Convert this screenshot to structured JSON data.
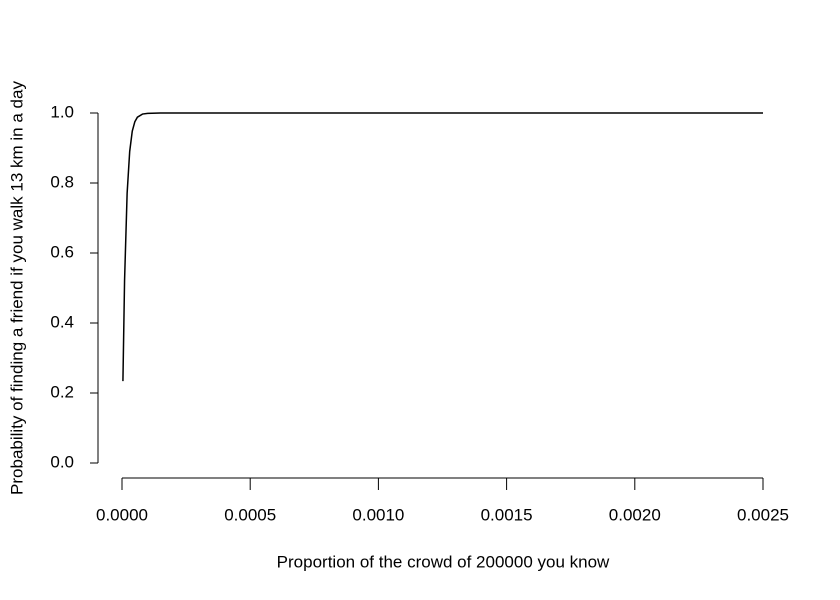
{
  "chart_data": {
    "type": "line",
    "x_label": "Proportion of the crowd of 200000 you know",
    "y_label": "Probability of finding a friend if you walk 13 km in a day",
    "x": [
      3.6e-06,
      1e-05,
      2e-05,
      3e-05,
      4e-05,
      5e-05,
      6e-05,
      8e-05,
      0.0001,
      0.00015,
      0.0002,
      0.0005,
      0.001,
      0.0015,
      0.002,
      0.0025
    ],
    "values": [
      0.234,
      0.521,
      0.771,
      0.89,
      0.948,
      0.975,
      0.988,
      0.997,
      0.999,
      1,
      1,
      1,
      1,
      1,
      1,
      1
    ],
    "color": "#000000",
    "xlim": [
      0,
      0.0025
    ],
    "ylim": [
      0,
      1
    ],
    "xticks": [
      {
        "value": 0,
        "label": "0.0000"
      },
      {
        "value": 0.0005,
        "label": "0.0005"
      },
      {
        "value": 0.001,
        "label": "0.0010"
      },
      {
        "value": 0.0015,
        "label": "0.0015"
      },
      {
        "value": 0.002,
        "label": "0.0020"
      },
      {
        "value": 0.0025,
        "label": "0.0025"
      }
    ],
    "yticks": [
      {
        "value": 0,
        "label": "0.0"
      },
      0.2,
      0.4,
      0.6,
      0.8,
      {
        "value": 1,
        "label": "1.0"
      }
    ]
  }
}
